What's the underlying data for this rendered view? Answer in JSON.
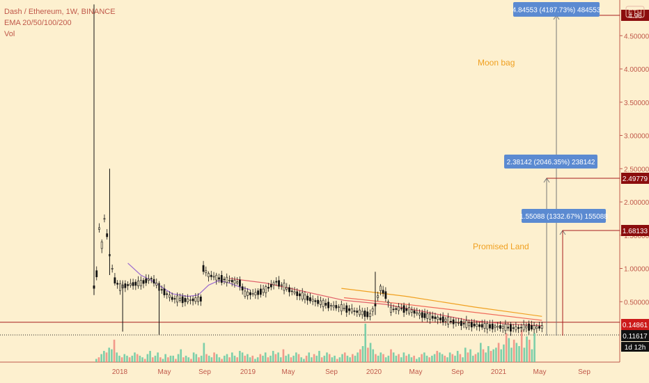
{
  "header": {
    "symbol_line": "Dash / Ethereum, 1W, BINANCE",
    "ema_line": "EMA 20/50/100/200",
    "vol_line": "Vol"
  },
  "currency_badge": "ETH",
  "colors": {
    "background": "#fdf0cf",
    "candle": "#111111",
    "level_line": "#a61d1d",
    "price_tag": "#8b0d0d",
    "measure_box": "#5b8ad1",
    "annotation": "#f0a020",
    "volume_up": "#66c9a2",
    "volume_down": "#f08a7e"
  },
  "annotations": {
    "moon_bag": "Moon bag",
    "promised_land": "Promised Land"
  },
  "measurements": [
    {
      "text": "4.84553 (4187.73%) 484553",
      "target": 4.84553
    },
    {
      "text": "2.38142 (2046.35%) 238142",
      "target": 2.49779
    },
    {
      "text": "1.55088 (1332.67%) 155088",
      "target": 1.68133
    }
  ],
  "price_tags": [
    {
      "label": "4.96",
      "value": 4.96,
      "style": "dark"
    },
    {
      "label": "2.49779",
      "value": 2.49779,
      "style": "dark"
    },
    {
      "label": "1.68133",
      "value": 1.68133,
      "style": "dark"
    },
    {
      "label": "0.14861",
      "value": 0.14861,
      "style": "red"
    },
    {
      "label": "0.11617",
      "value": 0.11617,
      "style": "black"
    }
  ],
  "countdown": "1d 12h",
  "chart_data": {
    "type": "candlestick",
    "title": "Dash / Ethereum, 1W, BINANCE",
    "y_ticks": [
      {
        "label": "4.50000",
        "v": 4.5
      },
      {
        "label": "4.00000",
        "v": 4.0
      },
      {
        "label": "3.50000",
        "v": 3.5
      },
      {
        "label": "3.00000",
        "v": 3.0
      },
      {
        "label": "2.50000",
        "v": 2.5
      },
      {
        "label": "2.00000",
        "v": 2.0
      },
      {
        "label": "1.50000",
        "v": 1.5
      },
      {
        "label": "1.00000",
        "v": 1.0
      },
      {
        "label": "0.50000",
        "v": 0.5
      }
    ],
    "x_ticks": [
      "2018",
      "May",
      "Sep",
      "2019",
      "May",
      "Sep",
      "2020",
      "May",
      "Sep",
      "2021",
      "May",
      "Sep"
    ],
    "horizontal_levels": [
      0.14861,
      0.11617,
      2.49779,
      1.68133
    ],
    "price_points": [
      {
        "w": 0,
        "v": 0.72
      },
      {
        "w": 1,
        "v": 0.92
      },
      {
        "w": 2,
        "v": 1.6
      },
      {
        "w": 3,
        "v": 1.35
      },
      {
        "w": 4,
        "v": 1.75
      },
      {
        "w": 5,
        "v": 1.5
      },
      {
        "w": 6,
        "v": 1.2
      },
      {
        "w": 7,
        "v": 1.0
      },
      {
        "w": 8,
        "v": 0.82
      },
      {
        "w": 10,
        "v": 0.72
      },
      {
        "w": 14,
        "v": 0.76
      },
      {
        "w": 18,
        "v": 0.78
      },
      {
        "w": 22,
        "v": 0.85
      },
      {
        "w": 26,
        "v": 0.68
      },
      {
        "w": 30,
        "v": 0.55
      },
      {
        "w": 36,
        "v": 0.52
      },
      {
        "w": 41,
        "v": 0.54
      },
      {
        "w": 42,
        "v": 1.0
      },
      {
        "w": 44,
        "v": 0.9
      },
      {
        "w": 48,
        "v": 0.85
      },
      {
        "w": 52,
        "v": 0.82
      },
      {
        "w": 56,
        "v": 0.78
      },
      {
        "w": 58,
        "v": 0.62
      },
      {
        "w": 62,
        "v": 0.62
      },
      {
        "w": 66,
        "v": 0.68
      },
      {
        "w": 70,
        "v": 0.8
      },
      {
        "w": 74,
        "v": 0.7
      },
      {
        "w": 78,
        "v": 0.62
      },
      {
        "w": 84,
        "v": 0.52
      },
      {
        "w": 90,
        "v": 0.45
      },
      {
        "w": 96,
        "v": 0.4
      },
      {
        "w": 102,
        "v": 0.34
      },
      {
        "w": 106,
        "v": 0.3
      },
      {
        "w": 108,
        "v": 0.45
      },
      {
        "w": 110,
        "v": 0.7
      },
      {
        "w": 112,
        "v": 0.6
      },
      {
        "w": 114,
        "v": 0.38
      },
      {
        "w": 118,
        "v": 0.4
      },
      {
        "w": 122,
        "v": 0.36
      },
      {
        "w": 126,
        "v": 0.3
      },
      {
        "w": 132,
        "v": 0.25
      },
      {
        "w": 140,
        "v": 0.18
      },
      {
        "w": 148,
        "v": 0.14
      },
      {
        "w": 156,
        "v": 0.12
      },
      {
        "w": 162,
        "v": 0.1
      },
      {
        "w": 166,
        "v": 0.12
      },
      {
        "w": 170,
        "v": 0.11
      },
      {
        "w": 172,
        "v": 0.12
      }
    ],
    "spikes": [
      {
        "w": 0,
        "low": 0.6,
        "high": 4.97
      },
      {
        "w": 6,
        "low": 0.9,
        "high": 2.5
      },
      {
        "w": 11,
        "low": 0.05,
        "high": 0.8
      },
      {
        "w": 25,
        "low": 0.0,
        "high": 0.78
      },
      {
        "w": 108,
        "low": 0.3,
        "high": 0.95
      }
    ],
    "ema_lines": [
      {
        "name": "EMA 20",
        "color": "#9b6bd0",
        "points": [
          {
            "w": 13,
            "v": 1.08
          },
          {
            "w": 18,
            "v": 0.9
          },
          {
            "w": 22,
            "v": 0.82
          },
          {
            "w": 26,
            "v": 0.72
          },
          {
            "w": 30,
            "v": 0.62
          },
          {
            "w": 36,
            "v": 0.58
          },
          {
            "w": 40,
            "v": 0.6
          },
          {
            "w": 44,
            "v": 0.75
          },
          {
            "w": 48,
            "v": 0.82
          },
          {
            "w": 52,
            "v": 0.78
          },
          {
            "w": 56,
            "v": 0.72
          },
          {
            "w": 60,
            "v": 0.68
          }
        ]
      },
      {
        "name": "EMA 50",
        "color": "#e0606a",
        "points": [
          {
            "w": 52,
            "v": 0.85
          },
          {
            "w": 66,
            "v": 0.78
          },
          {
            "w": 80,
            "v": 0.66
          },
          {
            "w": 96,
            "v": 0.52
          },
          {
            "w": 112,
            "v": 0.46
          },
          {
            "w": 128,
            "v": 0.34
          },
          {
            "w": 144,
            "v": 0.22
          },
          {
            "w": 160,
            "v": 0.16
          },
          {
            "w": 172,
            "v": 0.14
          }
        ]
      },
      {
        "name": "EMA 100",
        "color": "#f0a020",
        "points": [
          {
            "w": 95,
            "v": 0.7
          },
          {
            "w": 120,
            "v": 0.58
          },
          {
            "w": 146,
            "v": 0.42
          },
          {
            "w": 172,
            "v": 0.28
          }
        ]
      },
      {
        "name": "EMA 200",
        "color": "#f06a5a",
        "points": [
          {
            "w": 96,
            "v": 0.56
          },
          {
            "w": 120,
            "v": 0.46
          },
          {
            "w": 146,
            "v": 0.34
          },
          {
            "w": 172,
            "v": 0.22
          }
        ]
      }
    ],
    "volume": [
      2,
      3,
      5,
      7,
      6,
      9,
      8,
      14,
      6,
      4,
      3,
      5,
      4,
      3,
      4,
      6,
      5,
      4,
      3,
      2,
      5,
      7,
      3,
      4,
      6,
      3,
      2,
      5,
      3,
      4,
      4,
      2,
      5,
      8,
      3,
      4,
      3,
      2,
      6,
      5,
      3,
      4,
      12,
      5,
      4,
      3,
      6,
      5,
      3,
      2,
      4,
      5,
      3,
      6,
      4,
      3,
      7,
      6,
      4,
      5,
      3,
      4,
      2,
      3,
      5,
      4,
      6,
      3,
      4,
      7,
      5,
      6,
      3,
      8,
      4,
      5,
      3,
      4,
      6,
      5,
      3,
      2,
      4,
      6,
      3,
      5,
      4,
      7,
      3,
      4,
      6,
      5,
      3,
      4,
      2,
      3,
      5,
      6,
      4,
      3,
      5,
      4,
      6,
      8,
      10,
      24,
      9,
      12,
      8,
      5,
      4,
      6,
      5,
      3,
      4,
      8,
      6,
      4,
      5,
      3,
      6,
      4,
      5,
      3,
      4,
      2,
      3,
      5,
      6,
      4,
      3,
      4,
      5,
      7,
      6,
      5,
      4,
      3,
      6,
      5,
      4,
      7,
      5,
      3,
      9,
      6,
      8,
      4,
      5,
      6,
      12,
      8,
      6,
      10,
      7,
      8,
      9,
      12,
      8,
      11,
      18,
      15,
      9,
      14,
      12,
      10,
      20,
      9,
      16,
      14,
      8,
      18
    ],
    "volume_up_pattern": "alternating"
  }
}
